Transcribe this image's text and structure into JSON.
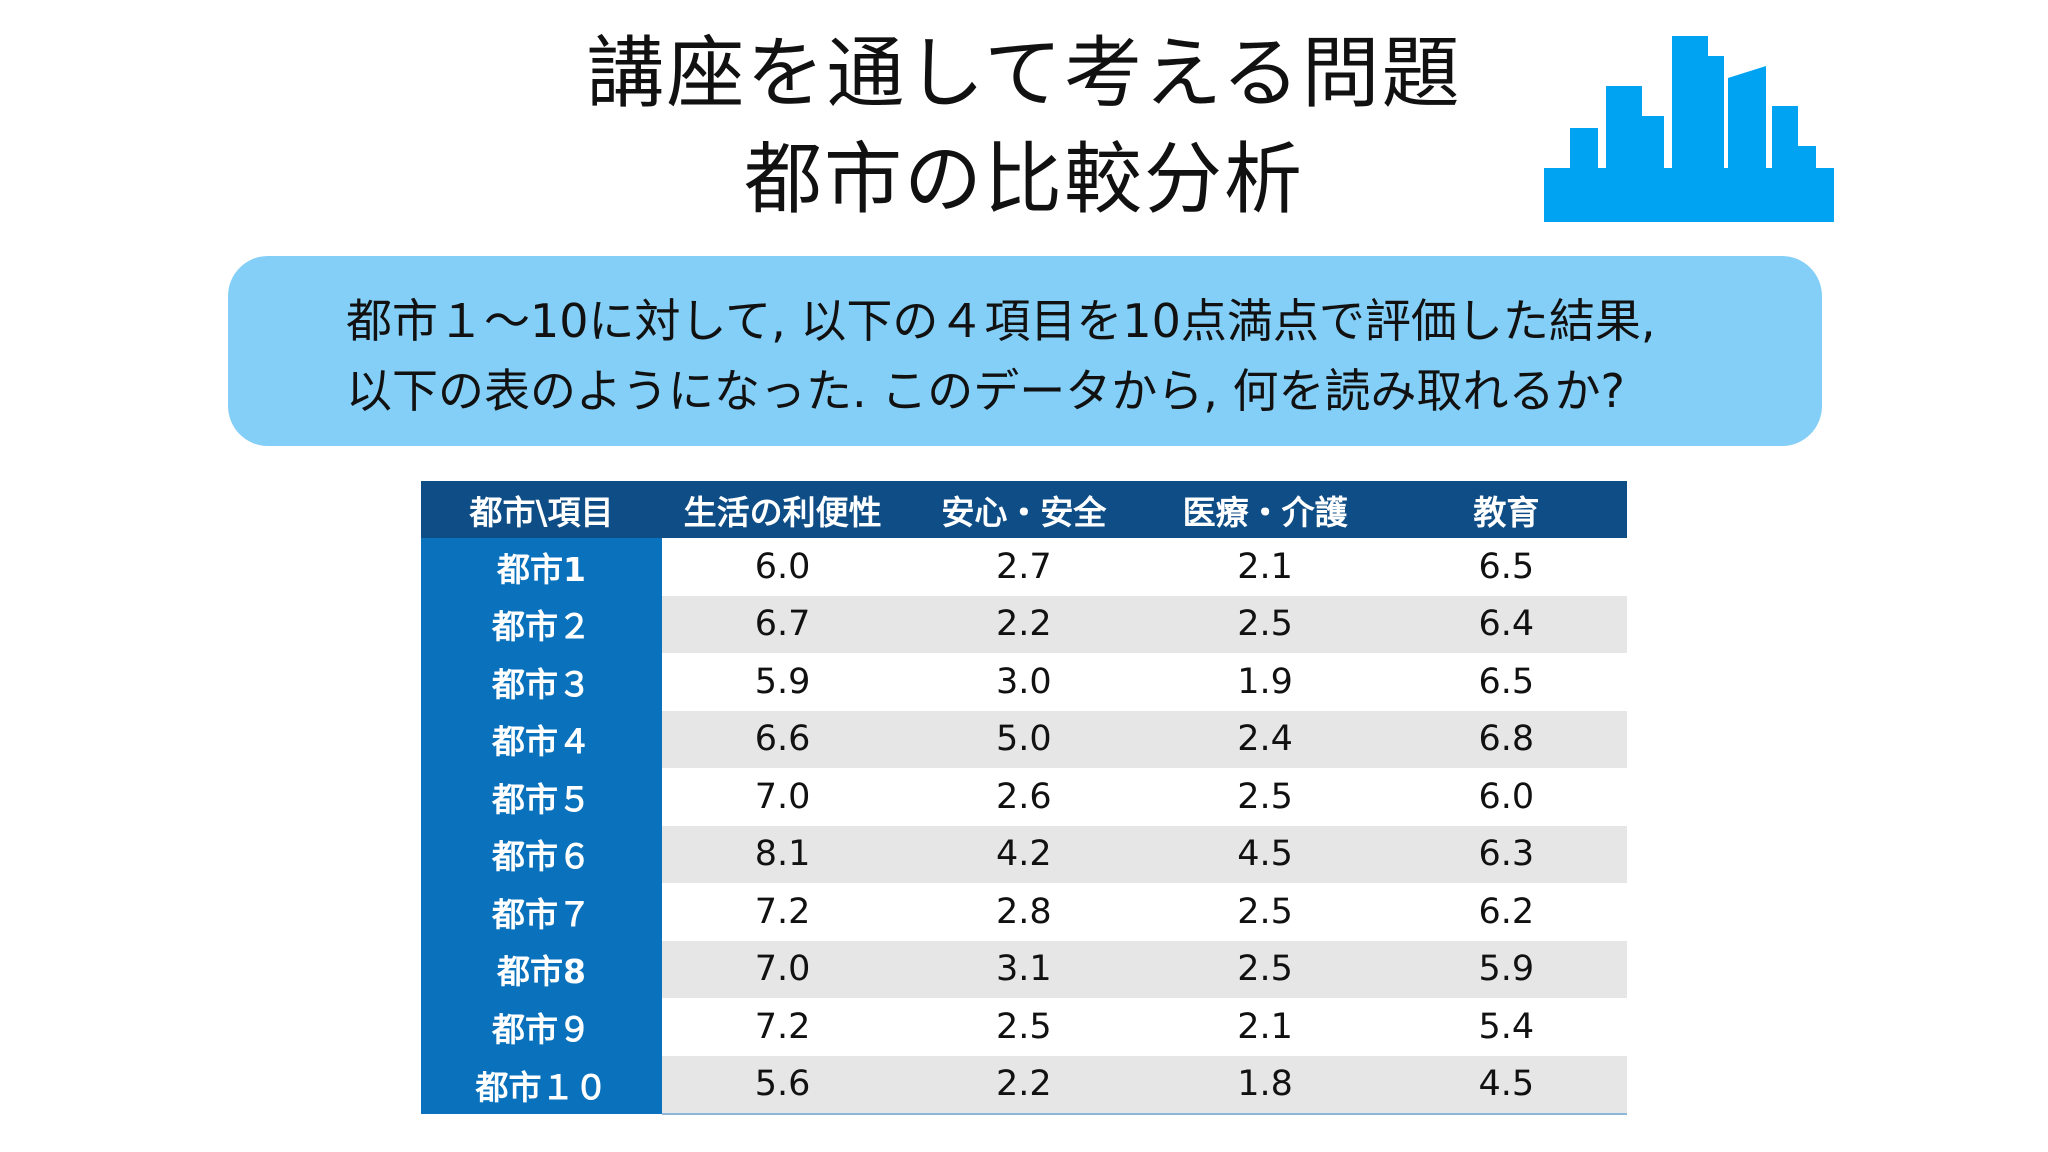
{
  "title": {
    "line1": "講座を通して考える問題",
    "line2": "都市の比較分析"
  },
  "icon": "city-skyline-icon",
  "colors": {
    "icon": "#00a2f2",
    "question_box": "#84cff7",
    "table_header": "#0e4d86",
    "row_header": "#0a72bd",
    "stripe": "#e6e6e6"
  },
  "question": {
    "line1": "都市１〜10に対して, 以下の４項目を10点満点で評価した結果,",
    "line2": "以下の表のようになった. このデータから, 何を読み取れるか?"
  },
  "table": {
    "headers": [
      "都市\\項目",
      "生活の利便性",
      "安心・安全",
      "医療・介護",
      "教育"
    ],
    "rows": [
      {
        "city": "都市1",
        "values": [
          "6.0",
          "2.7",
          "2.1",
          "6.5"
        ]
      },
      {
        "city": "都市２",
        "values": [
          "6.7",
          "2.2",
          "2.5",
          "6.4"
        ]
      },
      {
        "city": "都市３",
        "values": [
          "5.9",
          "3.0",
          "1.9",
          "6.5"
        ]
      },
      {
        "city": "都市４",
        "values": [
          "6.6",
          "5.0",
          "2.4",
          "6.8"
        ]
      },
      {
        "city": "都市５",
        "values": [
          "7.0",
          "2.6",
          "2.5",
          "6.0"
        ]
      },
      {
        "city": "都市６",
        "values": [
          "8.1",
          "4.2",
          "4.5",
          "6.3"
        ]
      },
      {
        "city": "都市７",
        "values": [
          "7.2",
          "2.8",
          "2.5",
          "6.2"
        ]
      },
      {
        "city": "都市8",
        "values": [
          "7.0",
          "3.1",
          "2.5",
          "5.9"
        ]
      },
      {
        "city": "都市９",
        "values": [
          "7.2",
          "2.5",
          "2.1",
          "5.4"
        ]
      },
      {
        "city": "都市１０",
        "values": [
          "5.6",
          "2.2",
          "1.8",
          "4.5"
        ]
      }
    ]
  }
}
